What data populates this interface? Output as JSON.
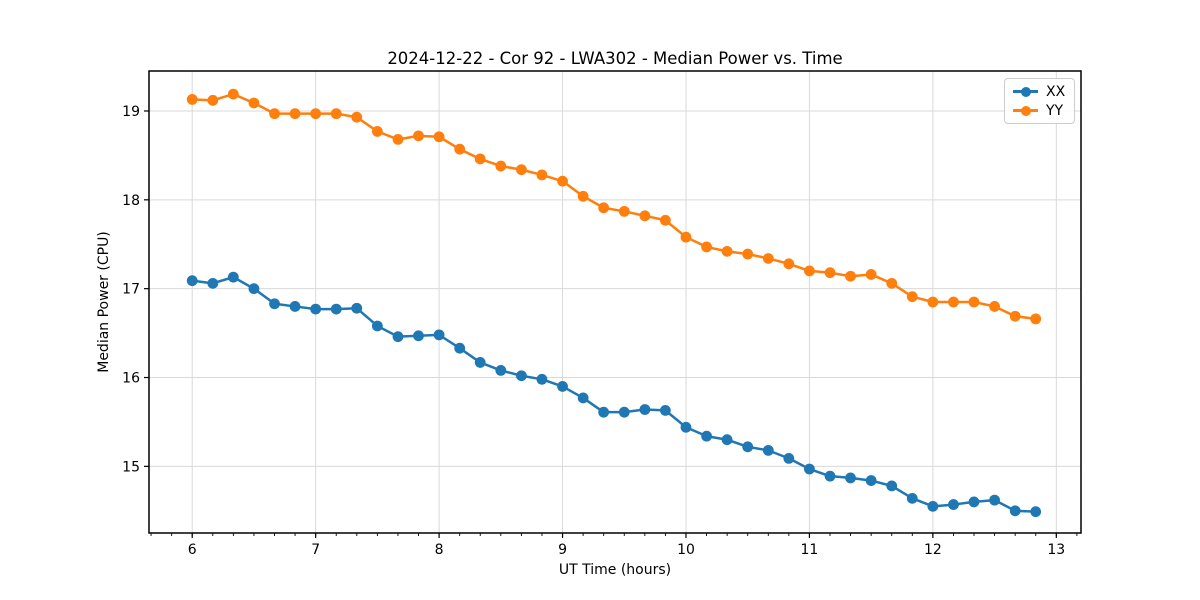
{
  "chart_data": {
    "type": "line",
    "title": "2024-12-22 - Cor 92 - LWA302 - Median Power vs. Time",
    "xlabel": "UT Time (hours)",
    "ylabel": "Median Power (CPU)",
    "xlim": [
      5.65,
      13.2
    ],
    "ylim": [
      14.25,
      19.45
    ],
    "xticks": [
      6,
      7,
      8,
      9,
      10,
      11,
      12,
      13
    ],
    "yticks": [
      15,
      16,
      17,
      18,
      19
    ],
    "x_minor_step": 0.166667,
    "grid": true,
    "legend": {
      "position": "upper right",
      "entries": [
        "XX",
        "YY"
      ]
    },
    "colors": {
      "grid": "#d9d9d9",
      "axis": "#000000",
      "text": "#000000",
      "background": "#ffffff",
      "series_xx": "#1f77b4",
      "series_yy": "#ff7f0e"
    },
    "x": [
      6.0,
      6.167,
      6.333,
      6.5,
      6.667,
      6.833,
      7.0,
      7.167,
      7.333,
      7.5,
      7.667,
      7.833,
      8.0,
      8.167,
      8.333,
      8.5,
      8.667,
      8.833,
      9.0,
      9.167,
      9.333,
      9.5,
      9.667,
      9.833,
      10.0,
      10.167,
      10.333,
      10.5,
      10.667,
      10.833,
      11.0,
      11.167,
      11.333,
      11.5,
      11.667,
      11.833,
      12.0,
      12.167,
      12.333,
      12.5,
      12.667,
      12.833
    ],
    "series": [
      {
        "name": "XX",
        "color": "#1f77b4",
        "marker": "circle",
        "values": [
          17.09,
          17.06,
          17.13,
          17.0,
          16.83,
          16.8,
          16.77,
          16.77,
          16.78,
          16.58,
          16.46,
          16.47,
          16.48,
          16.33,
          16.17,
          16.08,
          16.02,
          15.98,
          15.9,
          15.77,
          15.61,
          15.61,
          15.64,
          15.63,
          15.44,
          15.34,
          15.3,
          15.22,
          15.18,
          15.09,
          14.97,
          14.89,
          14.87,
          14.84,
          14.78,
          14.64,
          14.55,
          14.57,
          14.6,
          14.62,
          14.5,
          14.49
        ]
      },
      {
        "name": "YY",
        "color": "#ff7f0e",
        "marker": "circle",
        "values": [
          19.13,
          19.12,
          19.19,
          19.09,
          18.97,
          18.97,
          18.97,
          18.97,
          18.93,
          18.77,
          18.68,
          18.72,
          18.71,
          18.57,
          18.46,
          18.38,
          18.34,
          18.28,
          18.21,
          18.04,
          17.91,
          17.87,
          17.82,
          17.77,
          17.58,
          17.47,
          17.42,
          17.39,
          17.34,
          17.28,
          17.2,
          17.18,
          17.14,
          17.16,
          17.06,
          16.91,
          16.85,
          16.85,
          16.85,
          16.8,
          16.69,
          16.66
        ]
      }
    ]
  }
}
